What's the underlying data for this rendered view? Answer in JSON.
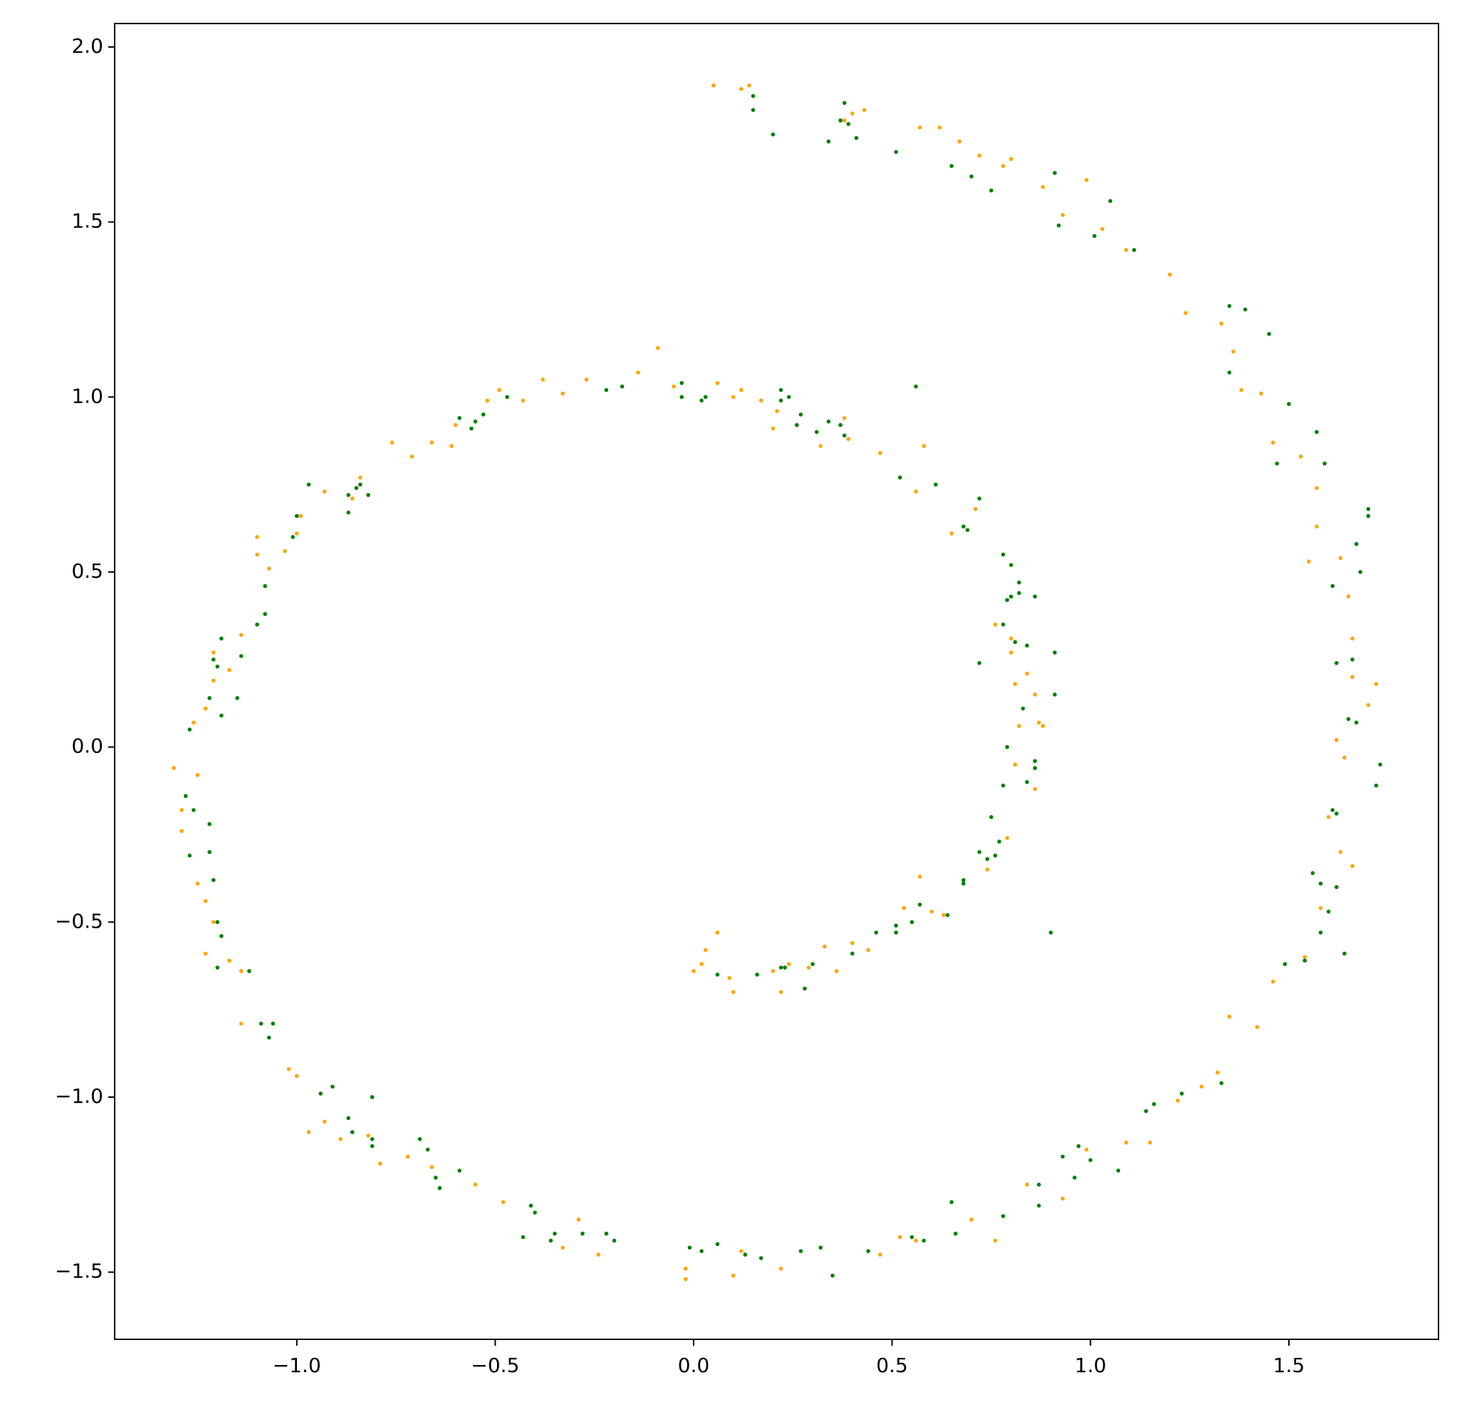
{
  "chart_data": {
    "type": "scatter",
    "xlim": [
      -1.459,
      1.877
    ],
    "ylim": [
      -1.692,
      2.067
    ],
    "xticks": [
      {
        "value": -1.0,
        "label": "−1.0"
      },
      {
        "value": -0.5,
        "label": "−0.5"
      },
      {
        "value": 0.0,
        "label": "0.0"
      },
      {
        "value": 0.5,
        "label": "0.5"
      },
      {
        "value": 1.0,
        "label": "1.0"
      },
      {
        "value": 1.5,
        "label": "1.5"
      }
    ],
    "yticks": [
      {
        "value": -1.5,
        "label": "−1.5"
      },
      {
        "value": -1.0,
        "label": "−1.0"
      },
      {
        "value": -0.5,
        "label": "−0.5"
      },
      {
        "value": 0.0,
        "label": "0.0"
      },
      {
        "value": 0.5,
        "label": "0.5"
      },
      {
        "value": 1.0,
        "label": "1.0"
      },
      {
        "value": 1.5,
        "label": "1.5"
      },
      {
        "value": 2.0,
        "label": "2.0"
      }
    ],
    "grid": false,
    "series": [
      {
        "color": "#ffa500",
        "x": [
          0.05,
          0.12,
          0.14,
          0.38,
          0.4,
          0.43,
          0.57,
          0.62,
          0.67,
          0.72,
          0.78,
          0.8,
          0.88,
          0.93,
          0.99,
          1.03,
          1.09,
          1.2,
          1.24,
          1.33,
          1.36,
          1.38,
          1.43,
          1.46,
          1.53,
          1.57,
          1.57,
          1.55,
          1.63,
          1.65,
          1.66,
          1.66,
          1.7,
          1.72,
          1.62,
          1.64,
          1.6,
          1.63,
          1.66,
          1.58,
          1.54,
          1.46,
          1.42,
          1.35,
          1.32,
          1.28,
          1.22,
          1.15,
          1.09,
          0.99,
          0.93,
          0.84,
          0.76,
          0.7,
          0.56,
          0.52,
          0.47,
          0.22,
          0.12,
          0.1,
          -0.02,
          -0.02,
          -0.24,
          -0.29,
          -0.33,
          -0.48,
          -0.55,
          -0.66,
          -0.72,
          -0.79,
          -0.82,
          -0.89,
          -0.93,
          -0.97,
          -1.0,
          -1.02,
          -1.14,
          -1.14,
          -1.17,
          -1.21,
          -1.23,
          -1.23,
          -1.25,
          -1.29,
          -1.29,
          -1.31,
          -1.25,
          -1.26,
          -1.23,
          -1.21,
          -1.21,
          -1.17,
          -1.14,
          -1.1,
          -1.1,
          -1.07,
          -1.03,
          -1.0,
          -0.99,
          -0.93,
          -0.86,
          -0.84,
          -0.76,
          -0.71,
          -0.66,
          -0.61,
          -0.6,
          -0.52,
          -0.49,
          -0.43,
          -0.38,
          -0.33,
          -0.27,
          -0.14,
          -0.09,
          -0.05,
          0.06,
          0.1,
          0.12,
          0.17,
          0.21,
          0.2,
          0.32,
          0.38,
          0.39,
          0.47,
          0.58,
          0.56,
          0.65,
          0.71,
          0.76,
          0.8,
          0.8,
          0.81,
          0.84,
          0.86,
          0.82,
          0.87,
          0.88,
          0.81,
          0.86,
          0.79,
          0.74,
          0.57,
          0.6,
          0.53,
          0.63,
          0.44,
          0.4,
          0.36,
          0.33,
          0.29,
          0.24,
          0.2,
          0.22,
          0.1,
          0.09,
          0.06,
          0.03,
          0.02,
          0.0
        ],
        "values": [
          1.89,
          1.88,
          1.89,
          1.79,
          1.81,
          1.82,
          1.77,
          1.77,
          1.73,
          1.69,
          1.66,
          1.68,
          1.6,
          1.52,
          1.62,
          1.48,
          1.42,
          1.35,
          1.24,
          1.21,
          1.13,
          1.02,
          1.01,
          0.87,
          0.83,
          0.74,
          0.63,
          0.53,
          0.54,
          0.43,
          0.31,
          0.2,
          0.12,
          0.18,
          0.02,
          -0.03,
          -0.2,
          -0.3,
          -0.34,
          -0.46,
          -0.6,
          -0.67,
          -0.8,
          -0.77,
          -0.93,
          -0.97,
          -1.01,
          -1.13,
          -1.13,
          -1.15,
          -1.29,
          -1.25,
          -1.41,
          -1.35,
          -1.41,
          -1.4,
          -1.45,
          -1.49,
          -1.44,
          -1.51,
          -1.49,
          -1.52,
          -1.45,
          -1.35,
          -1.43,
          -1.3,
          -1.25,
          -1.2,
          -1.17,
          -1.19,
          -1.11,
          -1.12,
          -1.07,
          -1.1,
          -0.94,
          -0.92,
          -0.79,
          -0.64,
          -0.61,
          -0.5,
          -0.59,
          -0.44,
          -0.39,
          -0.24,
          -0.18,
          -0.06,
          -0.08,
          0.07,
          0.11,
          0.19,
          0.27,
          0.22,
          0.32,
          0.6,
          0.55,
          0.51,
          0.56,
          0.61,
          0.66,
          0.73,
          0.71,
          0.77,
          0.87,
          0.83,
          0.87,
          0.86,
          0.92,
          0.99,
          1.02,
          0.99,
          1.05,
          1.01,
          1.05,
          1.07,
          1.14,
          1.03,
          1.04,
          1.0,
          1.02,
          0.99,
          0.96,
          0.91,
          0.86,
          0.94,
          0.88,
          0.84,
          0.86,
          0.73,
          0.61,
          0.68,
          0.35,
          0.31,
          0.27,
          0.18,
          0.21,
          0.15,
          0.06,
          0.07,
          0.06,
          -0.05,
          -0.12,
          -0.26,
          -0.35,
          -0.37,
          -0.47,
          -0.46,
          -0.48,
          -0.58,
          -0.56,
          -0.64,
          -0.57,
          -0.63,
          -0.62,
          -0.64,
          -0.7,
          -0.7,
          -0.66,
          -0.53,
          -0.58,
          -0.62,
          -0.64
        ]
      },
      {
        "color": "#008000",
        "x": [
          0.15,
          0.15,
          0.2,
          0.34,
          0.37,
          0.38,
          0.39,
          0.41,
          0.51,
          0.65,
          0.7,
          0.75,
          0.91,
          0.92,
          1.01,
          1.05,
          1.11,
          1.35,
          1.35,
          1.39,
          1.45,
          1.5,
          1.47,
          1.57,
          1.59,
          1.61,
          1.7,
          1.7,
          1.67,
          1.68,
          1.62,
          1.66,
          1.65,
          1.67,
          1.73,
          1.72,
          1.61,
          1.62,
          1.56,
          1.58,
          1.62,
          1.6,
          1.58,
          1.54,
          1.49,
          1.64,
          1.33,
          1.23,
          1.16,
          1.14,
          1.07,
          1.0,
          0.97,
          0.96,
          0.93,
          0.87,
          0.87,
          0.78,
          0.66,
          0.65,
          0.58,
          0.55,
          0.44,
          0.35,
          0.32,
          0.27,
          0.17,
          0.13,
          0.06,
          0.02,
          -0.01,
          -0.2,
          -0.22,
          -0.28,
          -0.35,
          -0.36,
          -0.4,
          -0.41,
          -0.43,
          -0.59,
          -0.64,
          -0.65,
          -0.67,
          -0.69,
          -0.81,
          -0.81,
          -0.81,
          -0.87,
          -0.91,
          -0.94,
          -0.86,
          -1.06,
          -1.07,
          -1.09,
          -1.12,
          -1.2,
          -1.19,
          -1.2,
          -1.21,
          -1.22,
          -1.22,
          -1.27,
          -1.28,
          -1.26,
          -1.27,
          -1.22,
          -1.19,
          -1.15,
          -1.19,
          -1.21,
          -1.2,
          -1.14,
          -1.1,
          -1.08,
          -1.08,
          -1.01,
          -1.0,
          -0.97,
          -0.87,
          -0.87,
          -0.84,
          -0.85,
          -0.82,
          -0.59,
          -0.56,
          -0.55,
          -0.53,
          -0.47,
          -0.22,
          -0.18,
          -0.03,
          -0.03,
          0.02,
          0.03,
          0.22,
          0.22,
          0.24,
          0.26,
          0.27,
          0.31,
          0.34,
          0.37,
          0.38,
          0.56,
          0.52,
          0.61,
          0.68,
          0.69,
          0.72,
          0.78,
          0.79,
          0.8,
          0.8,
          0.82,
          0.82,
          0.86,
          0.78,
          0.81,
          0.72,
          0.91,
          0.84,
          0.91,
          0.83,
          0.79,
          0.86,
          0.86,
          0.84,
          0.78,
          0.75,
          0.77,
          0.76,
          0.74,
          0.72,
          0.68,
          0.68,
          0.9,
          0.64,
          0.57,
          0.55,
          0.51,
          0.51,
          0.46,
          0.4,
          0.3,
          0.28,
          0.23,
          0.22,
          0.16,
          0.06
        ],
        "values": [
          1.86,
          1.82,
          1.75,
          1.73,
          1.79,
          1.84,
          1.78,
          1.74,
          1.7,
          1.66,
          1.63,
          1.59,
          1.64,
          1.49,
          1.46,
          1.56,
          1.42,
          1.26,
          1.07,
          1.25,
          1.18,
          0.98,
          0.81,
          0.9,
          0.81,
          0.46,
          0.68,
          0.66,
          0.58,
          0.5,
          0.24,
          0.25,
          0.08,
          0.07,
          -0.05,
          -0.11,
          -0.18,
          -0.19,
          -0.36,
          -0.39,
          -0.4,
          -0.47,
          -0.53,
          -0.61,
          -0.62,
          -0.59,
          -0.96,
          -0.99,
          -1.02,
          -1.04,
          -1.21,
          -1.18,
          -1.14,
          -1.23,
          -1.17,
          -1.25,
          -1.31,
          -1.34,
          -1.39,
          -1.3,
          -1.41,
          -1.4,
          -1.44,
          -1.51,
          -1.43,
          -1.44,
          -1.46,
          -1.45,
          -1.42,
          -1.44,
          -1.43,
          -1.41,
          -1.39,
          -1.39,
          -1.39,
          -1.41,
          -1.33,
          -1.31,
          -1.4,
          -1.21,
          -1.26,
          -1.23,
          -1.15,
          -1.12,
          -1.14,
          -1.12,
          -1.0,
          -1.06,
          -0.97,
          -0.99,
          -1.1,
          -0.79,
          -0.83,
          -0.79,
          -0.64,
          -0.63,
          -0.54,
          -0.5,
          -0.38,
          -0.3,
          -0.22,
          -0.31,
          -0.14,
          -0.18,
          0.05,
          0.14,
          0.09,
          0.14,
          0.31,
          0.25,
          0.23,
          0.26,
          0.35,
          0.46,
          0.38,
          0.6,
          0.66,
          0.75,
          0.67,
          0.72,
          0.75,
          0.74,
          0.72,
          0.94,
          0.91,
          0.93,
          0.95,
          1.0,
          1.02,
          1.03,
          1.04,
          1.0,
          0.99,
          1.0,
          1.02,
          0.99,
          1.0,
          0.92,
          0.95,
          0.9,
          0.93,
          0.92,
          0.89,
          1.03,
          0.77,
          0.75,
          0.63,
          0.62,
          0.71,
          0.55,
          0.42,
          0.43,
          0.52,
          0.44,
          0.47,
          0.43,
          0.35,
          0.3,
          0.24,
          0.27,
          0.29,
          0.15,
          0.11,
          0.0,
          -0.04,
          -0.06,
          -0.1,
          -0.11,
          -0.2,
          -0.27,
          -0.31,
          -0.32,
          -0.3,
          -0.38,
          -0.39,
          -0.53,
          -0.48,
          -0.45,
          -0.5,
          -0.51,
          -0.53,
          -0.53,
          -0.59,
          -0.62,
          -0.69,
          -0.63,
          -0.63,
          -0.65,
          -0.65
        ]
      }
    ]
  }
}
